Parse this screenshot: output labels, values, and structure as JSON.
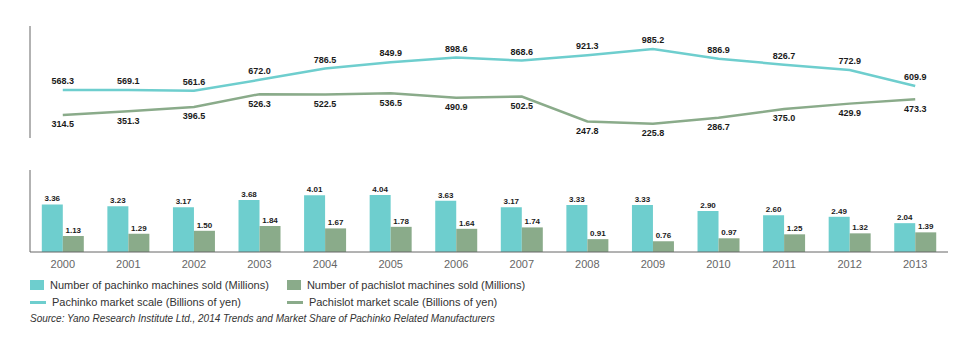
{
  "chart_data": [
    {
      "type": "line",
      "categories": [
        "2000",
        "2001",
        "2002",
        "2003",
        "2004",
        "2005",
        "2006",
        "2007",
        "2008",
        "2009",
        "2010",
        "2011",
        "2012",
        "2013"
      ],
      "series": [
        {
          "name": "Pachinko market scale (Billions of yen)",
          "color": "#6ecece",
          "values": [
            568.3,
            569.1,
            561.6,
            672.0,
            786.5,
            849.9,
            898.6,
            868.6,
            921.3,
            985.2,
            886.9,
            826.7,
            772.9,
            609.9
          ],
          "value_labels": [
            "568.3",
            "569.1",
            "561.6",
            "672.0",
            "786.5",
            "849.9",
            "898.6",
            "868.6",
            "921.3",
            "985.2",
            "886.9",
            "826.7",
            "772.9",
            "609.9"
          ]
        },
        {
          "name": "Pachislot market scale (Billions of yen)",
          "color": "#8aab8a",
          "values": [
            314.5,
            351.3,
            396.5,
            526.3,
            522.5,
            536.5,
            490.9,
            502.5,
            247.8,
            225.8,
            286.7,
            375.0,
            429.9,
            473.3
          ],
          "value_labels": [
            "314.5",
            "351.3",
            "396.5",
            "526.3",
            "522.5",
            "536.5",
            "490.9",
            "502.5",
            "247.8",
            "225.8",
            "286.7",
            "375.0",
            "429.9",
            "473.3"
          ]
        }
      ],
      "ylim": [
        80,
        1220
      ],
      "tick_labels": false,
      "data_labels": true,
      "grid": false,
      "legend": "lower left"
    },
    {
      "type": "bar",
      "categories": [
        "2000",
        "2001",
        "2002",
        "2003",
        "2004",
        "2005",
        "2006",
        "2007",
        "2008",
        "2009",
        "2010",
        "2011",
        "2012",
        "2013"
      ],
      "series": [
        {
          "name": "Number of pachinko machines sold (Millions)",
          "color": "#6ecece",
          "values": [
            3.36,
            3.23,
            3.17,
            3.68,
            4.01,
            4.04,
            3.63,
            3.17,
            3.33,
            3.33,
            2.9,
            2.6,
            2.49,
            2.04
          ],
          "value_labels": [
            "3.36",
            "3.23",
            "3.17",
            "3.68",
            "4.01",
            "4.04",
            "3.63",
            "3.17",
            "3.33",
            "3.33",
            "2.90",
            "2.60",
            "2.49",
            "2.04"
          ]
        },
        {
          "name": "Number of pachislot machines sold (Millions)",
          "color": "#8aab8a",
          "values": [
            1.13,
            1.29,
            1.5,
            1.84,
            1.67,
            1.78,
            1.64,
            1.74,
            0.91,
            0.76,
            0.97,
            1.25,
            1.32,
            1.39
          ],
          "value_labels": [
            "1.13",
            "1.29",
            "1.50",
            "1.84",
            "1.67",
            "1.78",
            "1.64",
            "1.74",
            "0.91",
            "0.76",
            "0.97",
            "1.25",
            "1.32",
            "1.39"
          ]
        }
      ],
      "ylim": [
        0,
        5.8
      ],
      "tick_labels": "x",
      "data_labels": true,
      "grid": false,
      "legend": "lower left",
      "annotations": [
        "Source: Yano Research Institute Ltd., 2014 Trends and Market Share of Pachinko Related Manufacturers"
      ]
    }
  ]
}
